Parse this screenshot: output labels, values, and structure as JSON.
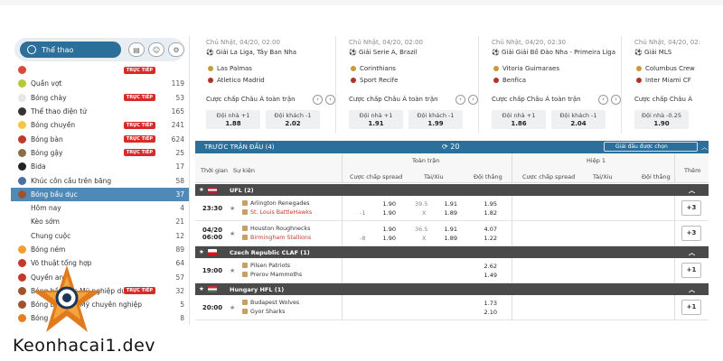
{
  "sidebar": {
    "home_label": "Thể thao",
    "items": [
      {
        "label": "",
        "live": true,
        "count": "",
        "color": "#d94a38"
      },
      {
        "label": "Quần vợt",
        "live": false,
        "count": "119",
        "color": "#b5c93a"
      },
      {
        "label": "Bóng chày",
        "live": true,
        "count": "53",
        "color": "#e7e7e7"
      },
      {
        "label": "Thể thao điện tử",
        "live": false,
        "count": "165",
        "color": "#333333"
      },
      {
        "label": "Bóng chuyền",
        "live": true,
        "count": "241",
        "color": "#f2c744"
      },
      {
        "label": "Bóng bàn",
        "live": true,
        "count": "624",
        "color": "#c0392b"
      },
      {
        "label": "Bóng gậy",
        "live": true,
        "count": "25",
        "color": "#8d6e4a"
      },
      {
        "label": "Bida",
        "live": false,
        "count": "17",
        "color": "#222222"
      },
      {
        "label": "Khúc côn cầu trên băng",
        "live": false,
        "count": "58",
        "color": "#4a6fa5"
      },
      {
        "label": "Bóng bầu dục",
        "live": false,
        "count": "37",
        "color": "#a0522d",
        "active": true
      },
      {
        "label": "Hôm nay",
        "live": false,
        "count": "4",
        "sub": true
      },
      {
        "label": "Kèo sớm",
        "live": false,
        "count": "21",
        "sub": true
      },
      {
        "label": "Chung cuộc",
        "live": false,
        "count": "12",
        "sub": true
      },
      {
        "label": "Bóng ném",
        "live": false,
        "count": "89",
        "color": "#f0a030"
      },
      {
        "label": "Võ thuật tổng hợp",
        "live": false,
        "count": "64",
        "color": "#c0392b"
      },
      {
        "label": "Quyền anh",
        "live": false,
        "count": "57",
        "color": "#c0392b"
      },
      {
        "label": "Bóng bầu dục Mỹ nghiệp dư",
        "live": true,
        "count": "32",
        "color": "#a0522d"
      },
      {
        "label": "Bóng bầu dục Mỹ chuyên nghiệp",
        "live": false,
        "count": "5",
        "color": "#a0522d"
      },
      {
        "label": "Bóng rổ",
        "live": false,
        "count": "8",
        "color": "#e67e22"
      }
    ],
    "live_label": "TRỰC TIẾP"
  },
  "cards": [
    {
      "date": "Chủ Nhật, 04/20, 02:00",
      "league": "Giải La Liga, Tây Ban Nha",
      "home": "Las Palmas",
      "away": "Atletico Madrid",
      "market": "Cược chấp Châu Á toàn trận",
      "h_label": "Đội nhà +1",
      "h_odd": "1.88",
      "a_label": "Đội khách -1",
      "a_odd": "2.02"
    },
    {
      "date": "Chủ Nhật, 04/20, 02:00",
      "league": "Giải Serie A, Brazil",
      "home": "Corinthians",
      "away": "Sport Recife",
      "market": "Cược chấp Châu Á toàn trận",
      "h_label": "Đội nhà +1",
      "h_odd": "1.91",
      "a_label": "Đội khách -1",
      "a_odd": "1.99"
    },
    {
      "date": "Chủ Nhật, 04/20, 02:30",
      "league": "Giải Giải Bồ Đào Nha - Primeira Liga",
      "home": "Vitoria Guimaraes",
      "away": "Benfica",
      "market": "Cược chấp Châu Á toàn trận",
      "h_label": "Đội nhà +1",
      "h_odd": "1.86",
      "a_label": "Đội khách -1",
      "a_odd": "2.04"
    },
    {
      "date": "Chủ Nhật, 04/20, 02:",
      "league": "Giải MLS",
      "home": "Columbus Crew",
      "away": "Inter Miami CF",
      "market": "Cược chấp Châu Á",
      "h_label": "Đội nhà -0.25",
      "h_odd": "1.90",
      "a_label": "",
      "a_odd": ""
    }
  ],
  "table": {
    "bar_title": "TRƯỚC TRẬN ĐẤU (4)",
    "refresh_count": "20",
    "selected_leagues": "Giải đấu được chọn",
    "col_time": "Thời gian",
    "col_event": "Sự kiện",
    "full_match": "Toàn trận",
    "half1": "Hiệp 1",
    "spread": "Cược chấp spread",
    "total": "Tài/Xỉu",
    "win": "Đội thắng",
    "more": "Thêm",
    "leagues": [
      {
        "name": "UFL (2)",
        "flag": "us",
        "matches": [
          {
            "time": "23:30",
            "date": "",
            "home": "Arlington Renegades",
            "away": "St. Louis BattleHawks",
            "away_red": true,
            "sp_line_h": "",
            "sp_line_a": "-1",
            "sp_h": "1.90",
            "sp_a": "1.90",
            "tot_line": "39.5",
            "tot_x": "X",
            "tot_o": "1.91",
            "tot_u": "1.89",
            "win_h": "1.95",
            "win_a": "1.82",
            "more": "+3"
          },
          {
            "time": "06:00",
            "date": "04/20",
            "home": "Houston Roughnecks",
            "away": "Birmingham Stallions",
            "away_red": true,
            "sp_line_h": "",
            "sp_line_a": "-8",
            "sp_h": "1.90",
            "sp_a": "1.90",
            "tot_line": "36.5",
            "tot_x": "X",
            "tot_o": "1.91",
            "tot_u": "1.89",
            "win_h": "4.07",
            "win_a": "1.22",
            "more": "+3"
          }
        ]
      },
      {
        "name": "Czech Republic CLAF (1)",
        "flag": "cz",
        "matches": [
          {
            "time": "19:00",
            "date": "",
            "home": "Pilsen Patriots",
            "away": "Prerov Mammoths",
            "away_red": false,
            "win_h": "2.62",
            "win_a": "1.49",
            "more": "+1"
          }
        ]
      },
      {
        "name": "Hungary HFL (1)",
        "flag": "hu",
        "matches": [
          {
            "time": "20:00",
            "date": "",
            "home": "Budapest Wolves",
            "away": "Gyor Sharks",
            "away_red": false,
            "win_h": "1.73",
            "win_a": "2.10",
            "more": "+1"
          }
        ]
      }
    ]
  },
  "watermark": "Keonhacai1.dev",
  "colors": {
    "primary": "#2c6f9b",
    "live": "#d72a2a",
    "league_bar": "#4a4a4a",
    "active": "#4f89b8"
  }
}
